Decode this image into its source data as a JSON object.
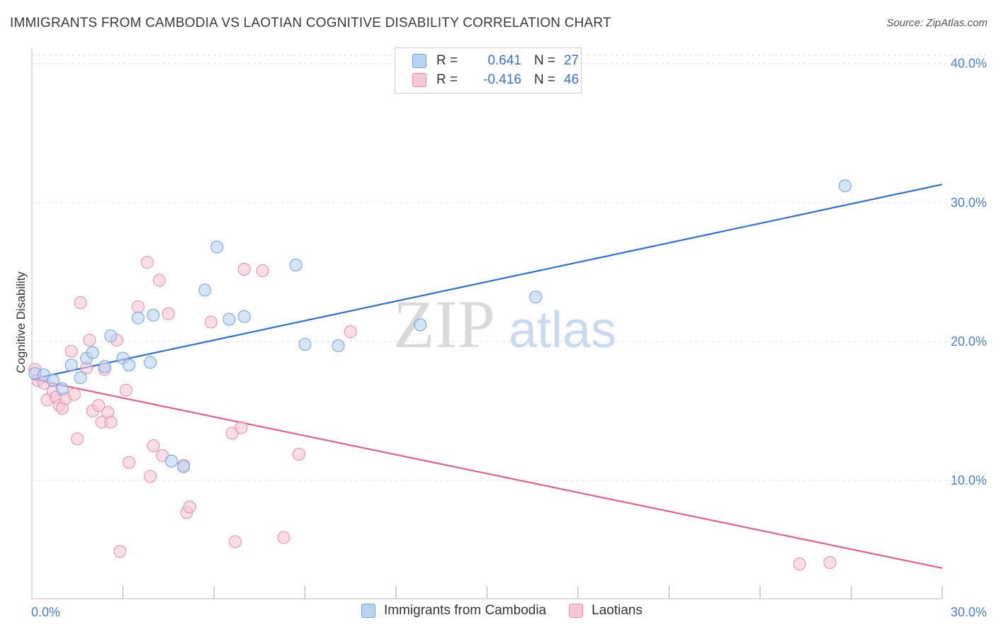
{
  "title": "IMMIGRANTS FROM CAMBODIA VS LAOTIAN COGNITIVE DISABILITY CORRELATION CHART",
  "source": "Source: ZipAtlas.com",
  "watermark": {
    "zip": "ZIP",
    "atlas": "atlas"
  },
  "colors": {
    "blue_fill": "#b9d2f2",
    "blue_stroke": "#6d9ee0",
    "blue_line": "#2f6fd0",
    "pink_fill": "#f8c7d6",
    "pink_stroke": "#e88aaa",
    "pink_line": "#e0608e",
    "tick_text": "#4a7fc9",
    "grid": "#e3e3e3"
  },
  "legend": {
    "rows": [
      {
        "r_label": "R =",
        "r_value": "0.641",
        "n_label": "N =",
        "n_value": "27"
      },
      {
        "r_label": "R =",
        "r_value": "-0.416",
        "n_label": "N =",
        "n_value": "46"
      }
    ]
  },
  "bottom_legend": [
    "Immigrants from Cambodia",
    "Laotians"
  ],
  "chart_data": {
    "type": "scatter",
    "xlabel": "",
    "ylabel": "Cognitive Disability",
    "xlim": [
      0,
      30
    ],
    "ylim": [
      1.5,
      41
    ],
    "x_tick_labels": [
      "0.0%",
      "30.0%"
    ],
    "y_ticks": [
      10,
      20,
      30,
      40
    ],
    "y_tick_labels": [
      "10.0%",
      "20.0%",
      "30.0%",
      "40.0%"
    ],
    "grid": true,
    "series": [
      {
        "name": "Immigrants from Cambodia",
        "color": "blue",
        "points": [
          [
            0.1,
            17.7
          ],
          [
            0.4,
            17.6
          ],
          [
            0.7,
            17.2
          ],
          [
            1.0,
            16.6
          ],
          [
            1.3,
            18.3
          ],
          [
            1.6,
            17.4
          ],
          [
            1.8,
            18.8
          ],
          [
            2.0,
            19.2
          ],
          [
            2.4,
            18.2
          ],
          [
            2.6,
            20.4
          ],
          [
            3.0,
            18.8
          ],
          [
            3.2,
            18.3
          ],
          [
            3.5,
            21.7
          ],
          [
            3.9,
            18.5
          ],
          [
            4.0,
            21.9
          ],
          [
            4.6,
            11.4
          ],
          [
            5.0,
            11.0
          ],
          [
            5.7,
            23.7
          ],
          [
            6.1,
            26.8
          ],
          [
            6.5,
            21.6
          ],
          [
            7.0,
            21.8
          ],
          [
            8.7,
            25.5
          ],
          [
            9.0,
            19.8
          ],
          [
            10.1,
            19.7
          ],
          [
            12.8,
            21.2
          ],
          [
            16.6,
            23.2
          ],
          [
            26.8,
            31.2
          ]
        ],
        "trend": {
          "x": [
            0,
            30
          ],
          "y": [
            17.3,
            31.3
          ]
        }
      },
      {
        "name": "Laotians",
        "color": "pink",
        "points": [
          [
            0.1,
            18.0
          ],
          [
            0.2,
            17.2
          ],
          [
            0.4,
            17.0
          ],
          [
            0.5,
            15.8
          ],
          [
            0.7,
            16.4
          ],
          [
            0.8,
            16.0
          ],
          [
            0.9,
            15.4
          ],
          [
            1.0,
            15.2
          ],
          [
            1.1,
            15.9
          ],
          [
            1.3,
            19.3
          ],
          [
            1.4,
            16.2
          ],
          [
            1.5,
            13.0
          ],
          [
            1.6,
            22.8
          ],
          [
            1.8,
            18.1
          ],
          [
            1.9,
            20.1
          ],
          [
            2.0,
            15.0
          ],
          [
            2.2,
            15.4
          ],
          [
            2.3,
            14.2
          ],
          [
            2.4,
            18.0
          ],
          [
            2.5,
            14.9
          ],
          [
            2.6,
            14.2
          ],
          [
            2.8,
            20.1
          ],
          [
            3.1,
            16.5
          ],
          [
            3.2,
            11.3
          ],
          [
            3.5,
            22.5
          ],
          [
            3.8,
            25.7
          ],
          [
            3.9,
            10.3
          ],
          [
            4.0,
            12.5
          ],
          [
            4.2,
            24.4
          ],
          [
            4.3,
            11.8
          ],
          [
            4.5,
            22.0
          ],
          [
            5.0,
            11.1
          ],
          [
            5.1,
            7.7
          ],
          [
            5.2,
            8.1
          ],
          [
            5.9,
            21.4
          ],
          [
            6.6,
            13.4
          ],
          [
            6.7,
            5.6
          ],
          [
            6.9,
            13.8
          ],
          [
            7.0,
            25.2
          ],
          [
            7.6,
            25.1
          ],
          [
            8.3,
            5.9
          ],
          [
            8.8,
            11.9
          ],
          [
            10.5,
            20.7
          ],
          [
            25.3,
            4.0
          ],
          [
            26.3,
            4.1
          ],
          [
            2.9,
            4.9
          ]
        ],
        "trend": {
          "x": [
            0,
            30
          ],
          "y": [
            17.3,
            3.7
          ]
        }
      }
    ]
  }
}
